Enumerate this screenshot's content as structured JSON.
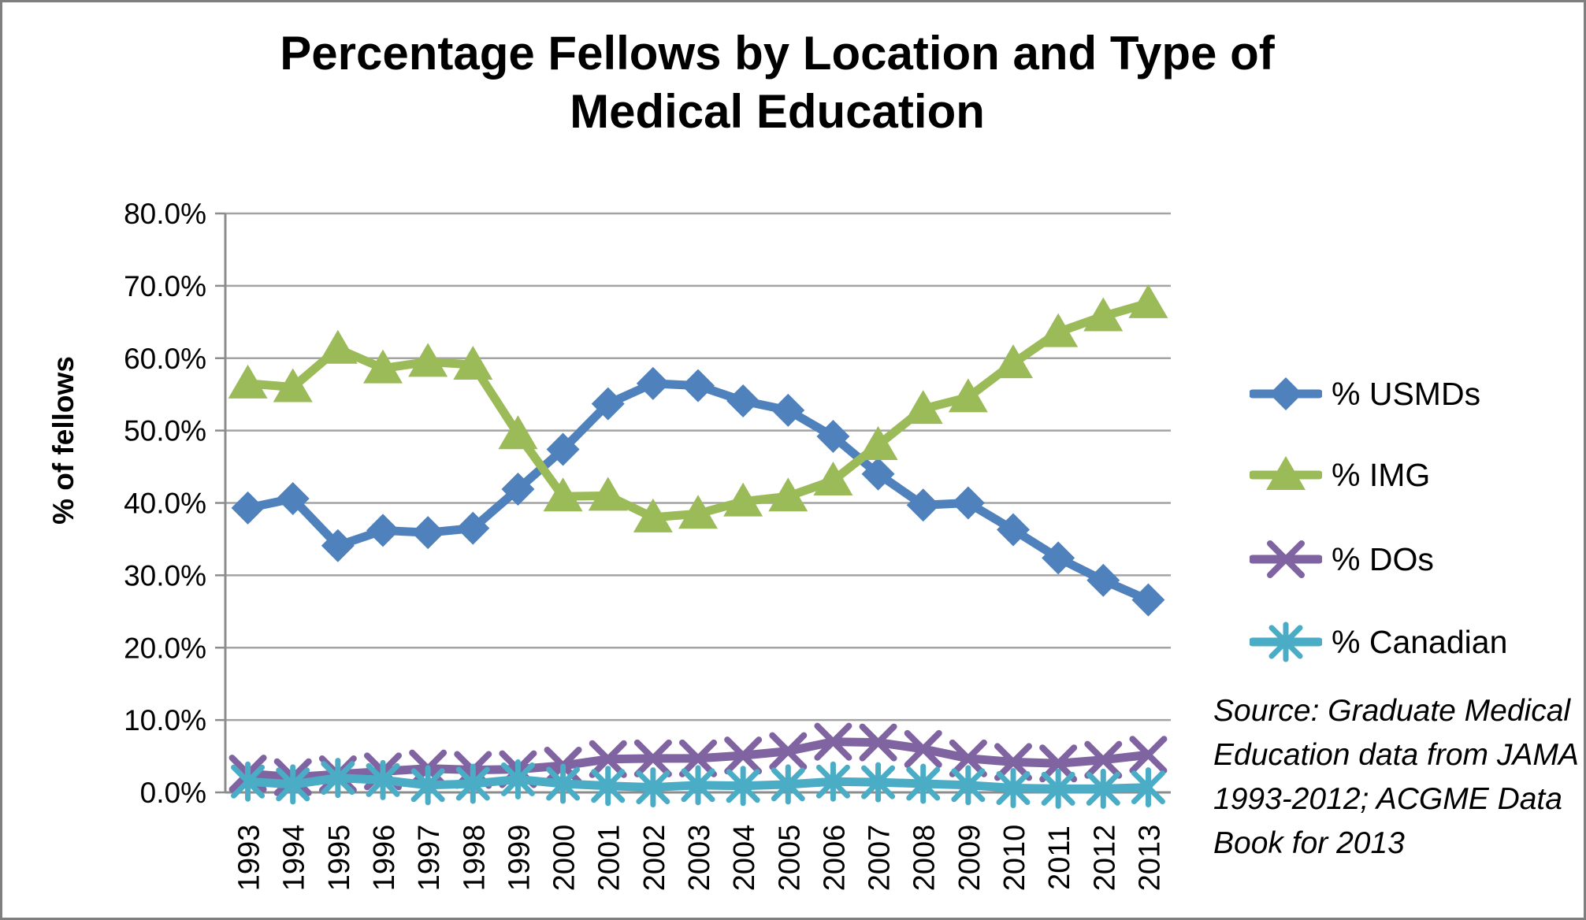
{
  "title": {
    "line1": "Percentage Fellows by Location and Type of",
    "line2": "Medical Education"
  },
  "y_axis": {
    "title": "% of fellows",
    "min_label": "0.0%",
    "max_label": "80.0%"
  },
  "source_note": {
    "lines": [
      "Source: Graduate Medical",
      "Education data from JAMA",
      "1993-2012; ACGME Data",
      "Book for 2013"
    ]
  },
  "colors": {
    "gridline": "#a3a3a3",
    "axis": "#8c8c8c",
    "text": "#000000",
    "frame": "#7f7f7f"
  },
  "chart_data": {
    "type": "line",
    "title": "Percentage Fellows by Location and Type of Medical Education",
    "xlabel": "",
    "ylabel": "% of fellows",
    "ylim": [
      0,
      80
    ],
    "ytick_step": 10,
    "grid": true,
    "legend_position": "right",
    "x": [
      1993,
      1994,
      1995,
      1996,
      1997,
      1998,
      1999,
      2000,
      2001,
      2002,
      2003,
      2004,
      2005,
      2006,
      2007,
      2008,
      2009,
      2010,
      2011,
      2012,
      2013
    ],
    "series": [
      {
        "name": "% USMDs",
        "color": "#4F81BD",
        "marker": "diamond",
        "values": [
          39.3,
          40.6,
          34.1,
          36.2,
          35.9,
          36.5,
          41.9,
          47.4,
          53.7,
          56.5,
          56.2,
          54.1,
          52.8,
          49.2,
          44.0,
          39.7,
          40.0,
          36.3,
          32.4,
          29.3,
          26.6
        ]
      },
      {
        "name": "% IMG",
        "color": "#9BBB59",
        "marker": "triangle",
        "values": [
          56.5,
          56.0,
          61.3,
          58.6,
          59.5,
          59.1,
          49.5,
          40.9,
          41.0,
          38.0,
          38.5,
          40.2,
          40.9,
          43.1,
          48.0,
          53.0,
          54.6,
          59.3,
          63.6,
          65.8,
          67.6
        ]
      },
      {
        "name": " % DOs",
        "color": "#8064A2",
        "marker": "x",
        "values": [
          2.6,
          2.1,
          2.5,
          2.9,
          3.3,
          3.1,
          3.2,
          3.7,
          4.6,
          4.7,
          4.7,
          5.1,
          5.7,
          7.0,
          6.9,
          6.0,
          4.7,
          4.2,
          4.0,
          4.5,
          5.2
        ]
      },
      {
        "name": "% Canadian",
        "color": "#4BACC6",
        "marker": "asterisk",
        "values": [
          1.5,
          1.1,
          2.0,
          1.7,
          1.0,
          1.2,
          1.8,
          1.2,
          0.9,
          0.7,
          1.0,
          0.9,
          1.1,
          1.5,
          1.4,
          1.2,
          1.0,
          0.6,
          0.5,
          0.5,
          0.7
        ]
      }
    ]
  }
}
